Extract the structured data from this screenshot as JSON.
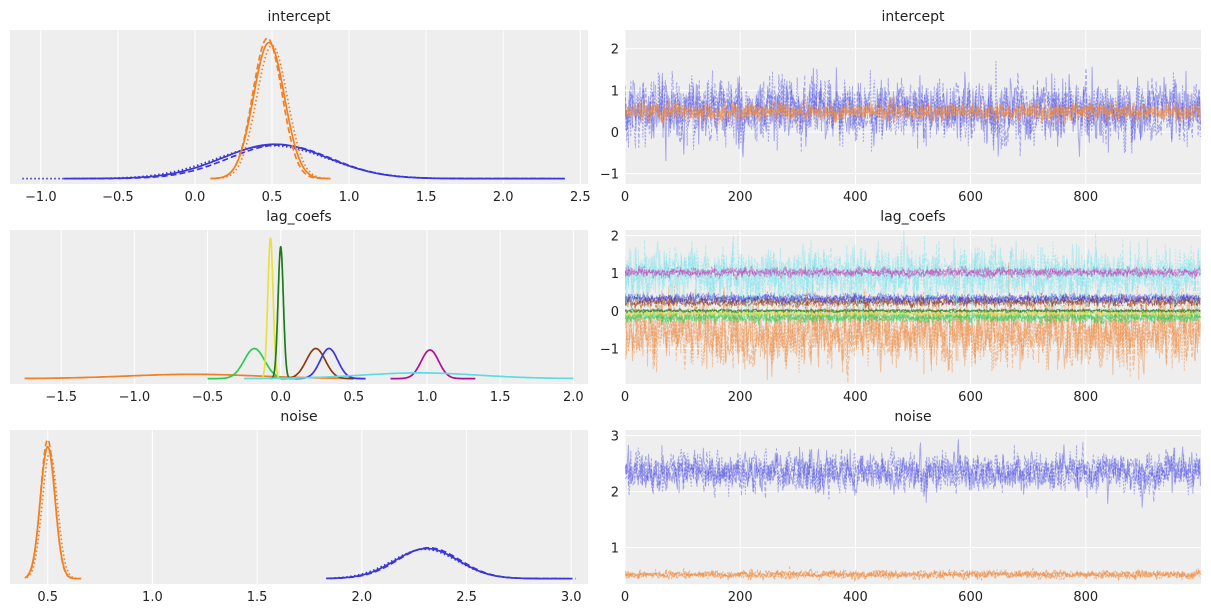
{
  "figure": {
    "type": "arviz-trace-plot"
  },
  "chart_data": [
    {
      "type": "line",
      "kind": "kde",
      "row": 0,
      "col": 0,
      "title": "intercept",
      "xlim": [
        -1.2,
        2.55
      ],
      "ylim": [
        0,
        1.0
      ],
      "xticks": [
        -1.0,
        -0.5,
        0.0,
        0.5,
        1.0,
        1.5,
        2.0,
        2.5
      ],
      "xtick_labels": [
        "−1.0",
        "−0.5",
        "0.0",
        "0.5",
        "1.0",
        "1.5",
        "2.0",
        "2.5"
      ],
      "yticks": [],
      "ytick_labels": [],
      "series": [
        {
          "name": "blue chain 1",
          "color": "#3a36d9",
          "dash": "solid",
          "mean": 0.52,
          "sd": 0.34,
          "peak": 0.24,
          "range": [
            -0.85,
            2.4
          ]
        },
        {
          "name": "blue chain 2",
          "color": "#3a36d9",
          "dash": "dot",
          "mean": 0.5,
          "sd": 0.36,
          "peak": 0.23,
          "range": [
            -1.12,
            2.4
          ]
        },
        {
          "name": "blue chain 3",
          "color": "#3a36d9",
          "dash": "dash",
          "mean": 0.55,
          "sd": 0.33,
          "peak": 0.235,
          "range": [
            -0.8,
            2.3
          ]
        },
        {
          "name": "orange chain 1",
          "color": "#f47f20",
          "dash": "solid",
          "mean": 0.48,
          "sd": 0.1,
          "peak": 0.95,
          "range": [
            0.1,
            0.88
          ]
        },
        {
          "name": "orange chain 2",
          "color": "#f47f20",
          "dash": "dash",
          "mean": 0.47,
          "sd": 0.095,
          "peak": 0.98,
          "range": [
            0.12,
            0.85
          ]
        },
        {
          "name": "orange chain 3",
          "color": "#f47f20",
          "dash": "dot",
          "mean": 0.5,
          "sd": 0.1,
          "peak": 0.93,
          "range": [
            0.1,
            0.88
          ]
        }
      ]
    },
    {
      "type": "line",
      "kind": "trace",
      "row": 0,
      "col": 1,
      "title": "intercept",
      "xlim": [
        0,
        1000
      ],
      "ylim": [
        -1.25,
        2.45
      ],
      "xticks": [
        0,
        200,
        400,
        600,
        800
      ],
      "xtick_labels": [
        "0",
        "200",
        "400",
        "600",
        "800"
      ],
      "yticks": [
        -1,
        0,
        1,
        2
      ],
      "ytick_labels": [
        "−1",
        "0",
        "1",
        "2"
      ],
      "series": [
        {
          "name": "blue chains",
          "color": "#5050e6",
          "opacity": 0.45,
          "mean": 0.52,
          "sd": 0.36,
          "chains": 3
        },
        {
          "name": "orange chains",
          "color": "#f0883a",
          "opacity": 0.55,
          "mean": 0.48,
          "sd": 0.1,
          "chains": 3
        }
      ]
    },
    {
      "type": "line",
      "kind": "kde",
      "row": 1,
      "col": 0,
      "title": "lag_coefs",
      "xlim": [
        -1.85,
        2.1
      ],
      "ylim": [
        0,
        1.0
      ],
      "xticks": [
        -1.5,
        -1.0,
        -0.5,
        0.0,
        0.5,
        1.0,
        1.5,
        2.0
      ],
      "xtick_labels": [
        "−1.5",
        "−1.0",
        "−0.5",
        "0.0",
        "0.5",
        "1.0",
        "1.5",
        "2.0"
      ],
      "yticks": [],
      "ytick_labels": [],
      "series": [
        {
          "name": "orange coef",
          "color": "#f47f20",
          "dash": "solid",
          "mean": -0.6,
          "sd": 0.45,
          "peak": 0.03,
          "range": [
            -1.75,
            0.55
          ]
        },
        {
          "name": "green coef",
          "color": "#2dcc50",
          "dash": "solid",
          "mean": -0.18,
          "sd": 0.07,
          "peak": 0.21,
          "range": [
            -0.5,
            0.1
          ]
        },
        {
          "name": "yellow coef",
          "color": "#e8e040",
          "dash": "solid",
          "mean": -0.07,
          "sd": 0.018,
          "peak": 0.98,
          "range": [
            -0.14,
            0.0
          ]
        },
        {
          "name": "dark green coef",
          "color": "#1f7a1f",
          "dash": "solid",
          "mean": 0.0,
          "sd": 0.018,
          "peak": 0.92,
          "range": [
            -0.07,
            0.07
          ]
        },
        {
          "name": "brown coef",
          "color": "#8b3a12",
          "dash": "solid",
          "mean": 0.24,
          "sd": 0.065,
          "peak": 0.21,
          "range": [
            0.0,
            0.5
          ]
        },
        {
          "name": "blue coef",
          "color": "#3a36d9",
          "dash": "solid",
          "mean": 0.33,
          "sd": 0.06,
          "peak": 0.21,
          "range": [
            0.1,
            0.58
          ]
        },
        {
          "name": "magenta coef",
          "color": "#b0108e",
          "dash": "solid",
          "mean": 1.02,
          "sd": 0.06,
          "peak": 0.2,
          "range": [
            0.75,
            1.33
          ]
        },
        {
          "name": "cyan coef",
          "color": "#5fdbe6",
          "dash": "solid",
          "mean": 0.95,
          "sd": 0.4,
          "peak": 0.04,
          "range": [
            -0.25,
            2.0
          ]
        }
      ]
    },
    {
      "type": "line",
      "kind": "trace",
      "row": 1,
      "col": 1,
      "title": "lag_coefs",
      "xlim": [
        0,
        1000
      ],
      "ylim": [
        -1.95,
        2.15
      ],
      "xticks": [
        0,
        200,
        400,
        600,
        800
      ],
      "xtick_labels": [
        "0",
        "200",
        "400",
        "600",
        "800"
      ],
      "yticks": [
        -1,
        0,
        1,
        2
      ],
      "ytick_labels": [
        "−1",
        "0",
        "1",
        "2"
      ],
      "series": [
        {
          "name": "orange coef",
          "color": "#f0883a",
          "opacity": 0.45,
          "mean": -0.6,
          "sd": 0.42,
          "chains": 3
        },
        {
          "name": "green coef",
          "color": "#2dcc50",
          "opacity": 0.5,
          "mean": -0.18,
          "sd": 0.07,
          "chains": 3
        },
        {
          "name": "yellow coef",
          "color": "#e8e040",
          "opacity": 0.6,
          "mean": -0.07,
          "sd": 0.02,
          "chains": 3
        },
        {
          "name": "dark green coef",
          "color": "#1f7a1f",
          "opacity": 0.6,
          "mean": 0.0,
          "sd": 0.02,
          "chains": 3
        },
        {
          "name": "brown coef",
          "color": "#8b3a12",
          "opacity": 0.5,
          "mean": 0.24,
          "sd": 0.065,
          "chains": 3
        },
        {
          "name": "blue coef",
          "color": "#3a36d9",
          "opacity": 0.45,
          "mean": 0.33,
          "sd": 0.06,
          "chains": 3
        },
        {
          "name": "cyan coef",
          "color": "#6ee3ee",
          "opacity": 0.4,
          "mean": 0.95,
          "sd": 0.35,
          "chains": 3
        },
        {
          "name": "magenta coef",
          "color": "#c036b0",
          "opacity": 0.45,
          "mean": 1.02,
          "sd": 0.06,
          "chains": 3
        }
      ]
    },
    {
      "type": "line",
      "kind": "kde",
      "row": 2,
      "col": 0,
      "title": "noise",
      "xlim": [
        0.32,
        3.08
      ],
      "ylim": [
        0,
        1.0
      ],
      "xticks": [
        0.5,
        1.0,
        1.5,
        2.0,
        2.5,
        3.0
      ],
      "xtick_labels": [
        "0.5",
        "1.0",
        "1.5",
        "2.0",
        "2.5",
        "3.0"
      ],
      "yticks": [],
      "ytick_labels": [],
      "series": [
        {
          "name": "orange chain 1",
          "color": "#f47f20",
          "dash": "solid",
          "mean": 0.5,
          "sd": 0.035,
          "peak": 0.92,
          "range": [
            0.4,
            0.66
          ]
        },
        {
          "name": "orange chain 2",
          "color": "#f47f20",
          "dash": "dash",
          "mean": 0.5,
          "sd": 0.034,
          "peak": 0.97,
          "range": [
            0.39,
            0.64
          ]
        },
        {
          "name": "orange chain 3",
          "color": "#f47f20",
          "dash": "dot",
          "mean": 0.51,
          "sd": 0.036,
          "peak": 0.88,
          "range": [
            0.4,
            0.66
          ]
        },
        {
          "name": "blue chain 1",
          "color": "#3a36d9",
          "dash": "solid",
          "mean": 2.31,
          "sd": 0.15,
          "peak": 0.21,
          "range": [
            1.83,
            3.0
          ]
        },
        {
          "name": "blue chain 2",
          "color": "#3a36d9",
          "dash": "dot",
          "mean": 2.3,
          "sd": 0.155,
          "peak": 0.205,
          "range": [
            1.83,
            3.02
          ]
        },
        {
          "name": "blue chain 3",
          "color": "#3a36d9",
          "dash": "dash",
          "mean": 2.32,
          "sd": 0.148,
          "peak": 0.215,
          "range": [
            1.85,
            2.95
          ]
        }
      ]
    },
    {
      "type": "line",
      "kind": "trace",
      "row": 2,
      "col": 1,
      "title": "noise",
      "xlim": [
        0,
        1000
      ],
      "ylim": [
        0.35,
        3.1
      ],
      "xticks": [
        0,
        200,
        400,
        600,
        800
      ],
      "xtick_labels": [
        "0",
        "200",
        "400",
        "600",
        "800"
      ],
      "yticks": [
        1,
        2,
        3
      ],
      "ytick_labels": [
        "1",
        "2",
        "3"
      ],
      "series": [
        {
          "name": "blue chains",
          "color": "#5050e6",
          "opacity": 0.45,
          "mean": 2.35,
          "sd": 0.16,
          "chains": 3
        },
        {
          "name": "orange chains",
          "color": "#f0883a",
          "opacity": 0.6,
          "mean": 0.52,
          "sd": 0.035,
          "chains": 3
        }
      ]
    }
  ]
}
